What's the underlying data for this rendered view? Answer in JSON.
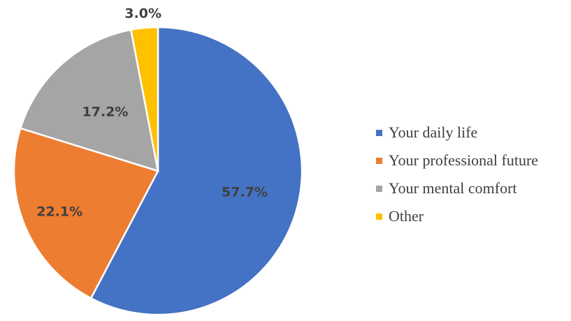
{
  "chart_data": {
    "type": "pie",
    "title": "",
    "categories": [
      "Your daily life",
      "Your professional future",
      "Your mental comfort",
      "Other"
    ],
    "values": [
      57.7,
      22.1,
      17.2,
      3.0
    ],
    "value_labels": [
      "57.7%",
      "22.1%",
      "17.2%",
      "3.0%"
    ],
    "colors": [
      "#4472C4",
      "#ED7D31",
      "#A5A5A5",
      "#FFC000"
    ],
    "legend": "right"
  }
}
